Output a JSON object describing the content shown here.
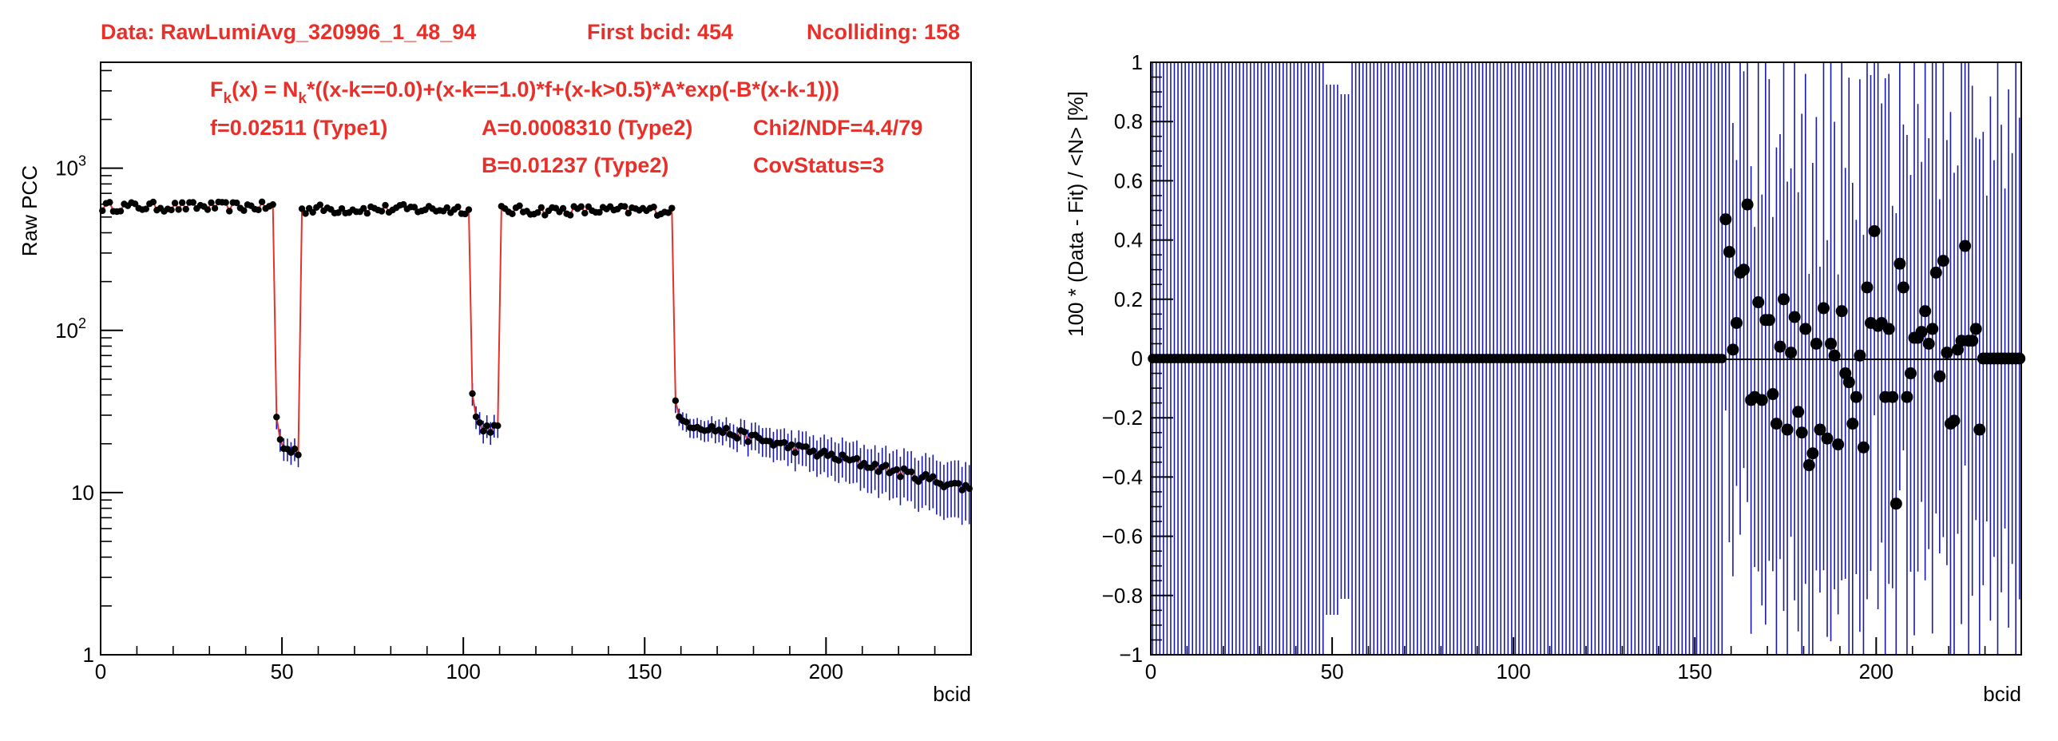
{
  "header": {
    "data_label": "Data: RawLumiAvg_320996_1_48_94",
    "first_bcid_label": "First bcid: 454",
    "ncolliding_label": "Ncolliding: 158"
  },
  "fit_info": {
    "formula_prefix": "F",
    "formula_sub_k": "k",
    "formula_mid": "(x) = N",
    "formula_sub_k2": "k",
    "formula_rest": "*((x-k==0.0)+(x-k==1.0)*f+(x-k>0.5)*A*exp(-B*(x-k-1)))",
    "f_label": "f=0.02511 (Type1)",
    "a_label": "A=0.0008310 (Type2)",
    "chi2_label": "Chi2/NDF=4.4/79",
    "b_label": "B=0.01237 (Type2)",
    "cov_label": "CovStatus=3"
  },
  "colors": {
    "annotation": "#e8302a",
    "fit_line": "#e8302a",
    "error_bars": "#1a1aa6",
    "markers": "#000000"
  },
  "chart_data": [
    {
      "type": "scatter",
      "name": "left-panel",
      "xlabel": "bcid",
      "ylabel": "Raw PCC",
      "xlim": [
        0,
        240
      ],
      "ylim": [
        1,
        4500
      ],
      "log_y": true,
      "x_ticks": [
        "0",
        "50",
        "100",
        "150",
        "200"
      ],
      "y_ticks": [
        {
          "base": "1",
          "exp": ""
        },
        {
          "base": "10",
          "exp": ""
        },
        {
          "base": "10",
          "exp": "2"
        },
        {
          "base": "10",
          "exp": "3"
        }
      ],
      "segments": [
        {
          "x_start": 0,
          "x_end": 47,
          "level": 580,
          "type": "train"
        },
        {
          "x_start": 48,
          "x_end": 54,
          "level": 18,
          "type": "gap_decay"
        },
        {
          "x_start": 55,
          "x_end": 101,
          "level": 560,
          "type": "train"
        },
        {
          "x_start": 102,
          "x_end": 109,
          "level": 25,
          "type": "gap_decay"
        },
        {
          "x_start": 110,
          "x_end": 157,
          "level": 550,
          "type": "train"
        },
        {
          "x_start": 158,
          "x_end": 240,
          "level_start": 28,
          "level_end": 10.5,
          "type": "tail_decay"
        }
      ],
      "grid": false
    },
    {
      "type": "scatter",
      "name": "right-panel",
      "xlabel": "bcid",
      "ylabel": "100 * (Data - Fit) / <N>   [%]",
      "xlim": [
        0,
        240
      ],
      "ylim": [
        -1,
        1
      ],
      "x_ticks": [
        "0",
        "50",
        "100",
        "150",
        "200"
      ],
      "y_ticks": [
        "−1",
        "−0.8",
        "−0.6",
        "−0.4",
        "−0.2",
        "0",
        "0.2",
        "0.4",
        "0.6",
        "0.8",
        "1"
      ],
      "residuals_after_158": [
        {
          "x": 158,
          "y": 0.47
        },
        {
          "x": 159,
          "y": 0.36
        },
        {
          "x": 160,
          "y": 0.03
        },
        {
          "x": 161,
          "y": 0.12
        },
        {
          "x": 162,
          "y": 0.29
        },
        {
          "x": 163,
          "y": 0.3
        },
        {
          "x": 164,
          "y": 0.52
        },
        {
          "x": 165,
          "y": -0.14
        },
        {
          "x": 166,
          "y": -0.13
        },
        {
          "x": 167,
          "y": 0.19
        },
        {
          "x": 168,
          "y": -0.14
        },
        {
          "x": 169,
          "y": 0.13
        },
        {
          "x": 170,
          "y": 0.13
        },
        {
          "x": 171,
          "y": -0.12
        },
        {
          "x": 172,
          "y": -0.22
        },
        {
          "x": 173,
          "y": 0.04
        },
        {
          "x": 174,
          "y": 0.2
        },
        {
          "x": 175,
          "y": -0.24
        },
        {
          "x": 176,
          "y": 0.02
        },
        {
          "x": 177,
          "y": 0.14
        },
        {
          "x": 178,
          "y": -0.18
        },
        {
          "x": 179,
          "y": -0.25
        },
        {
          "x": 180,
          "y": 0.1
        },
        {
          "x": 181,
          "y": -0.36
        },
        {
          "x": 182,
          "y": -0.32
        },
        {
          "x": 183,
          "y": 0.05
        },
        {
          "x": 184,
          "y": -0.24
        },
        {
          "x": 185,
          "y": 0.17
        },
        {
          "x": 186,
          "y": -0.27
        },
        {
          "x": 187,
          "y": 0.05
        },
        {
          "x": 188,
          "y": 0.01
        },
        {
          "x": 189,
          "y": -0.29
        },
        {
          "x": 190,
          "y": 0.16
        },
        {
          "x": 191,
          "y": -0.05
        },
        {
          "x": 192,
          "y": -0.08
        },
        {
          "x": 193,
          "y": -0.22
        },
        {
          "x": 194,
          "y": -0.13
        },
        {
          "x": 195,
          "y": 0.01
        },
        {
          "x": 196,
          "y": -0.3
        },
        {
          "x": 197,
          "y": 0.24
        },
        {
          "x": 198,
          "y": 0.12
        },
        {
          "x": 199,
          "y": 0.43
        },
        {
          "x": 200,
          "y": 0.11
        },
        {
          "x": 201,
          "y": 0.12
        },
        {
          "x": 202,
          "y": -0.13
        },
        {
          "x": 203,
          "y": 0.1
        },
        {
          "x": 204,
          "y": -0.13
        },
        {
          "x": 205,
          "y": -0.49
        },
        {
          "x": 206,
          "y": 0.32
        },
        {
          "x": 207,
          "y": 0.24
        },
        {
          "x": 208,
          "y": -0.13
        },
        {
          "x": 209,
          "y": -0.05
        },
        {
          "x": 210,
          "y": 0.07
        },
        {
          "x": 211,
          "y": 0.07
        },
        {
          "x": 212,
          "y": 0.09
        },
        {
          "x": 213,
          "y": 0.16
        },
        {
          "x": 214,
          "y": 0.05
        },
        {
          "x": 215,
          "y": 0.1
        },
        {
          "x": 216,
          "y": 0.29
        },
        {
          "x": 217,
          "y": -0.06
        },
        {
          "x": 218,
          "y": 0.33
        },
        {
          "x": 219,
          "y": 0.02
        },
        {
          "x": 220,
          "y": -0.22
        },
        {
          "x": 221,
          "y": -0.21
        },
        {
          "x": 222,
          "y": 0.03
        },
        {
          "x": 223,
          "y": 0.06
        },
        {
          "x": 224,
          "y": 0.38
        },
        {
          "x": 225,
          "y": 0.06
        },
        {
          "x": 226,
          "y": 0.06
        },
        {
          "x": 227,
          "y": 0.1
        },
        {
          "x": 228,
          "y": -0.24
        }
      ],
      "grid": false
    }
  ]
}
